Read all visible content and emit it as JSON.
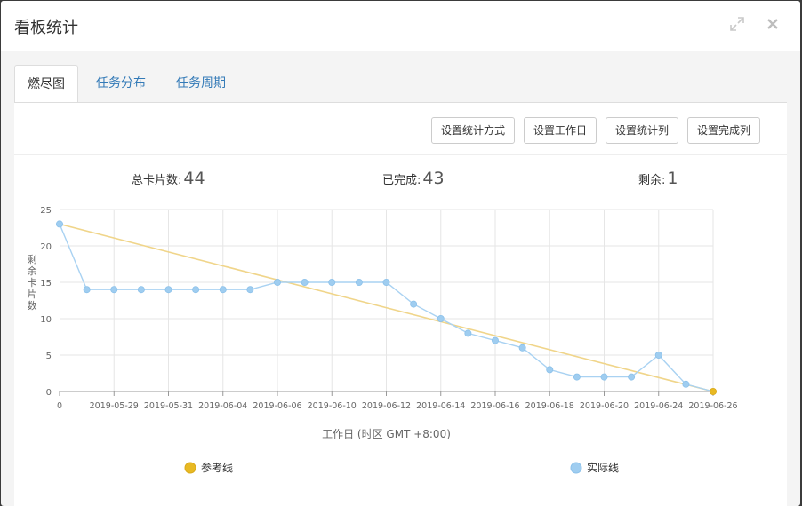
{
  "modal": {
    "title": "看板统计",
    "icons": {
      "expand": "expand-icon",
      "close": "close-icon"
    }
  },
  "tabs": [
    {
      "label": "燃尽图",
      "active": true
    },
    {
      "label": "任务分布",
      "active": false
    },
    {
      "label": "任务周期",
      "active": false
    }
  ],
  "toolbar": {
    "stat_method": "设置统计方式",
    "workday": "设置工作日",
    "stat_column": "设置统计列",
    "done_column": "设置完成列"
  },
  "stats": {
    "total_label": "总卡片数:",
    "total_value": "44",
    "done_label": "已完成:",
    "done_value": "43",
    "remaining_label": "剩余:",
    "remaining_value": "1"
  },
  "colors": {
    "reference": "#f0d58a",
    "reference_point": "#e8b923",
    "actual": "#a9d2f2",
    "actual_point": "#9fcdf0"
  },
  "chart_data": {
    "type": "line",
    "xlabel": "工作日 (时区 GMT +8:00)",
    "ylabel": "剩余卡片数",
    "ylim": [
      0,
      25
    ],
    "yticks": [
      0,
      5,
      10,
      15,
      20,
      25
    ],
    "x_tick_labels": [
      "0",
      "2019-05-29",
      "2019-05-31",
      "2019-06-04",
      "2019-06-06",
      "2019-06-10",
      "2019-06-12",
      "2019-06-14",
      "2019-06-16",
      "2019-06-18",
      "2019-06-20",
      "2019-06-24",
      "2019-06-26"
    ],
    "grid": true,
    "legend_position": "bottom",
    "series": [
      {
        "name": "参考线",
        "values": [
          23,
          0
        ],
        "x_index": [
          0,
          24
        ]
      },
      {
        "name": "实际线",
        "values": [
          23,
          14,
          14,
          14,
          14,
          14,
          14,
          14,
          15,
          15,
          15,
          15,
          15,
          12,
          10,
          8,
          7,
          6,
          3,
          2,
          2,
          2,
          5,
          1,
          0
        ]
      }
    ]
  }
}
